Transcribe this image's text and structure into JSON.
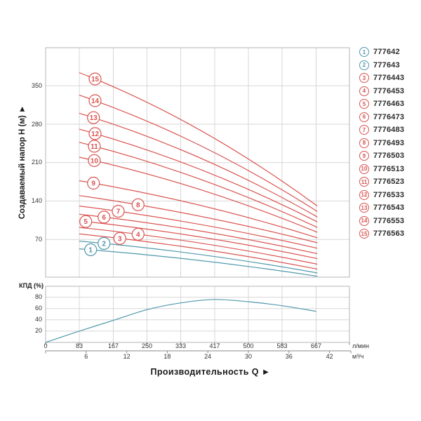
{
  "colors": {
    "red": "#d9534f",
    "teal": "#4f98ab",
    "grid": "#d7d7d7",
    "border": "#b5b5b5",
    "tick_mark": "#8a8a8a",
    "text": "#333333"
  },
  "axes": {
    "head_title": "Создаваемый напор H (м) ►",
    "flow_title": "Производительность Q ►",
    "eff_label": "КПД (%)",
    "unit_lmin": "л/мин",
    "unit_m3h": "м³/ч"
  },
  "chart_data": {
    "type": "line",
    "title": "",
    "ylabel": "Создаваемый напор H (м)",
    "xlabel": "Производительность Q",
    "x_units": [
      "л/мин",
      "м³/ч"
    ],
    "head_ticks": [
      70,
      140,
      210,
      280,
      350
    ],
    "flow_ticks_lmin": [
      0,
      83,
      167,
      250,
      333,
      417,
      500,
      583,
      667
    ],
    "flow_ticks_m3h": [
      6,
      12,
      18,
      24,
      30,
      36,
      42
    ],
    "ylim": [
      0,
      420
    ],
    "xlim_lmin": [
      0,
      749
    ],
    "grid": true,
    "legend_position": "right",
    "series": [
      {
        "num": 1,
        "model": "777642",
        "color": "teal",
        "q": [
          83,
          376,
          670
        ],
        "h": [
          53,
          32,
          3
        ],
        "badge_q": 111
      },
      {
        "num": 2,
        "model": "777643",
        "color": "teal",
        "q": [
          83,
          376,
          670
        ],
        "h": [
          67,
          43,
          9
        ],
        "badge_q": 144
      },
      {
        "num": 3,
        "model": "7776443",
        "color": "red",
        "q": [
          83,
          376,
          670
        ],
        "h": [
          80,
          53,
          16
        ],
        "badge_q": 183
      },
      {
        "num": 4,
        "model": "7776453",
        "color": "red",
        "q": [
          83,
          376,
          670
        ],
        "h": [
          92,
          64,
          25
        ],
        "badge_q": 228
      },
      {
        "num": 5,
        "model": "7776463",
        "color": "red",
        "q": [
          83,
          376,
          670
        ],
        "h": [
          104,
          75,
          35
        ],
        "badge_q": 99
      },
      {
        "num": 6,
        "model": "7776473",
        "color": "red",
        "q": [
          83,
          376,
          670
        ],
        "h": [
          116,
          86,
          44
        ],
        "badge_q": 144
      },
      {
        "num": 7,
        "model": "7776483",
        "color": "red",
        "q": [
          83,
          376,
          670
        ],
        "h": [
          131,
          98,
          54
        ],
        "badge_q": 179
      },
      {
        "num": 8,
        "model": "7776493",
        "color": "red",
        "q": [
          83,
          376,
          670
        ],
        "h": [
          150,
          113,
          64
        ],
        "badge_q": 228
      },
      {
        "num": 9,
        "model": "7776503",
        "color": "red",
        "q": [
          83,
          376,
          670
        ],
        "h": [
          177,
          133,
          73
        ],
        "badge_q": 118
      },
      {
        "num": 10,
        "model": "7776513",
        "color": "red",
        "q": [
          83,
          376,
          670
        ],
        "h": [
          220,
          162,
          83
        ],
        "badge_q": 120
      },
      {
        "num": 11,
        "model": "7776523",
        "color": "red",
        "q": [
          83,
          376,
          670
        ],
        "h": [
          247,
          181,
          92
        ],
        "badge_q": 120
      },
      {
        "num": 12,
        "model": "7776533",
        "color": "red",
        "q": [
          83,
          376,
          670
        ],
        "h": [
          271,
          199,
          102
        ],
        "badge_q": 122
      },
      {
        "num": 13,
        "model": "7776543",
        "color": "red",
        "q": [
          83,
          376,
          670
        ],
        "h": [
          300,
          220,
          111
        ],
        "badge_q": 118
      },
      {
        "num": 14,
        "model": "7776553",
        "color": "red",
        "q": [
          83,
          376,
          670
        ],
        "h": [
          333,
          243,
          121
        ],
        "badge_q": 122
      },
      {
        "num": 15,
        "model": "7776563",
        "color": "red",
        "q": [
          83,
          376,
          670
        ],
        "h": [
          374,
          271,
          131
        ],
        "badge_q": 122
      }
    ],
    "efficiency": {
      "label": "КПД (%)",
      "y_ticks": [
        20,
        40,
        60,
        80
      ],
      "ylim": [
        0,
        100
      ],
      "q": [
        0,
        83,
        167,
        250,
        333,
        417,
        500,
        583,
        667
      ],
      "pct": [
        0,
        20,
        39,
        58,
        70,
        76,
        72,
        65,
        55
      ]
    }
  }
}
